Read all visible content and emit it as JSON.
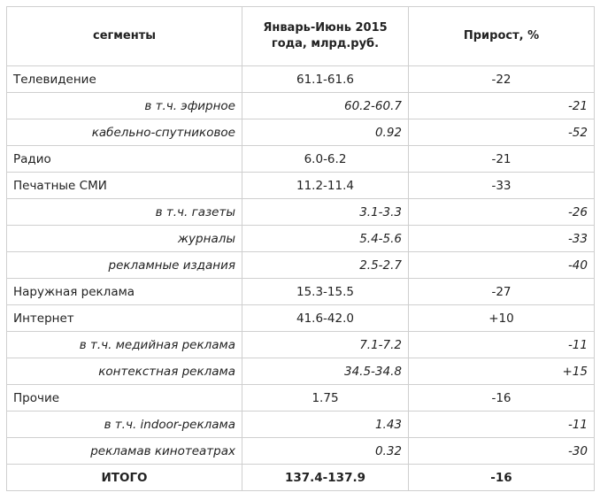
{
  "headers": {
    "segment": "сегменты",
    "value": "Январь-Июнь 2015 года, млрд.руб.",
    "growth": "Прирост, %"
  },
  "rows": [
    {
      "segment": "Телевидение",
      "value": "61.1-61.6",
      "growth": "-22",
      "sub": false
    },
    {
      "segment": "в т.ч. эфирное",
      "value": "60.2-60.7",
      "growth": "-21",
      "sub": true
    },
    {
      "segment": "кабельно-спутниковое",
      "value": "0.92",
      "growth": "-52",
      "sub": true
    },
    {
      "segment": "Радио",
      "value": "6.0-6.2",
      "growth": "-21",
      "sub": false
    },
    {
      "segment": "Печатные СМИ",
      "value": "11.2-11.4",
      "growth": "-33",
      "sub": false
    },
    {
      "segment": "в т.ч. газеты",
      "value": "3.1-3.3",
      "growth": "-26",
      "sub": true
    },
    {
      "segment": "журналы",
      "value": "5.4-5.6",
      "growth": "-33",
      "sub": true
    },
    {
      "segment": "рекламные издания",
      "value": "2.5-2.7",
      "growth": "-40",
      "sub": true
    },
    {
      "segment": "Наружная реклама",
      "value": "15.3-15.5",
      "growth": "-27",
      "sub": false
    },
    {
      "segment": "Интернет",
      "value": "41.6-42.0",
      "growth": "+10",
      "sub": false
    },
    {
      "segment": "в т.ч. медийная реклама",
      "value": "7.1-7.2",
      "growth": "-11",
      "sub": true
    },
    {
      "segment": "контекстная реклама",
      "value": "34.5-34.8",
      "growth": "+15",
      "sub": true
    },
    {
      "segment": "Прочие",
      "value": "1.75",
      "growth": "-16",
      "sub": false
    },
    {
      "segment": "в т.ч. indoor-реклама",
      "value": "1.43",
      "growth": "-11",
      "sub": true
    },
    {
      "segment": "рекламав кинотеатрах",
      "value": "0.32",
      "growth": "-30",
      "sub": true
    }
  ],
  "total": {
    "segment": "ИТОГО",
    "value": "137.4-137.9",
    "growth": "-16"
  }
}
